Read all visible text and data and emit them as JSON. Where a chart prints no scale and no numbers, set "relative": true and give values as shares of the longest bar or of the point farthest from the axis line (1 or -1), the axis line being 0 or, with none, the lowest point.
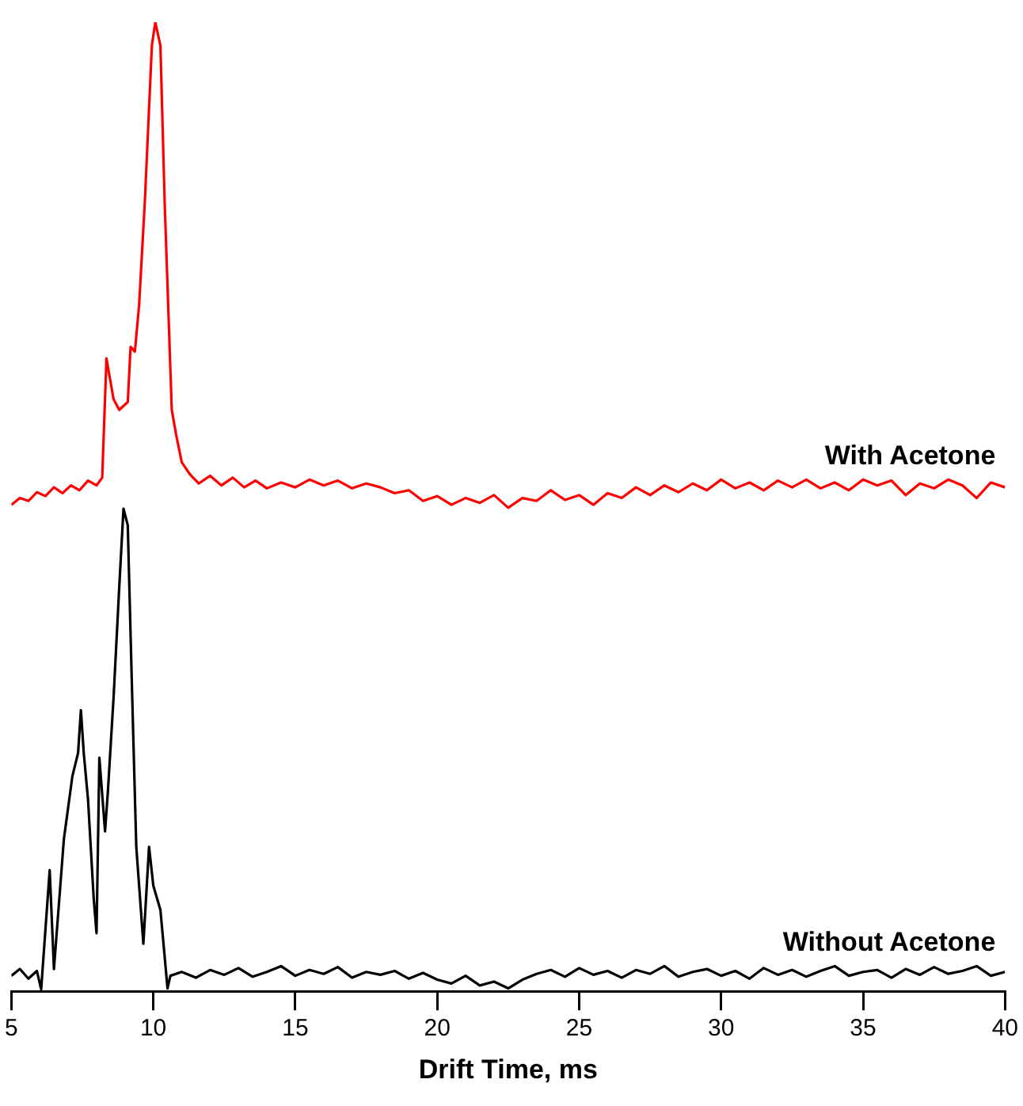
{
  "chart_data": {
    "type": "line",
    "xlabel": "Drift Time, ms",
    "relative": true,
    "legend": false,
    "grid": false,
    "marker": "none",
    "line_style": "solid",
    "xlim": [
      5,
      40
    ],
    "xticks": [
      5,
      10,
      15,
      20,
      25,
      30,
      35,
      40
    ],
    "series": [
      {
        "name": "With Acetone",
        "color": "#ff0000",
        "x": [
          5,
          5.3,
          5.6,
          5.9,
          6.2,
          6.5,
          6.8,
          7.1,
          7.4,
          7.7,
          8,
          8.2,
          8.35,
          8.6,
          8.8,
          9.1,
          9.2,
          9.35,
          9.5,
          9.7,
          9.95,
          10.07,
          10.25,
          10.4,
          10.65,
          10.8,
          11,
          11.3,
          11.6,
          12,
          12.4,
          12.8,
          13.2,
          13.6,
          14,
          14.5,
          15,
          15.5,
          16,
          16.5,
          17,
          17.5,
          18,
          18.5,
          19,
          19.5,
          20,
          20.5,
          21,
          21.5,
          22,
          22.5,
          23,
          23.5,
          24,
          24.5,
          25,
          25.5,
          26,
          26.5,
          27,
          27.5,
          28,
          28.5,
          29,
          29.5,
          30,
          30.5,
          31,
          31.5,
          32,
          32.5,
          33,
          33.5,
          34,
          34.5,
          35,
          35.5,
          36,
          36.5,
          37,
          37.5,
          38,
          38.5,
          39,
          39.5,
          40
        ],
        "values": [
          0.502,
          0.509,
          0.506,
          0.515,
          0.511,
          0.52,
          0.514,
          0.522,
          0.517,
          0.527,
          0.522,
          0.53,
          0.653,
          0.611,
          0.6,
          0.608,
          0.665,
          0.66,
          0.708,
          0.814,
          0.976,
          1,
          0.976,
          0.814,
          0.6,
          0.575,
          0.546,
          0.533,
          0.524,
          0.532,
          0.522,
          0.53,
          0.52,
          0.527,
          0.519,
          0.525,
          0.52,
          0.528,
          0.522,
          0.527,
          0.519,
          0.524,
          0.52,
          0.514,
          0.517,
          0.506,
          0.511,
          0.502,
          0.509,
          0.504,
          0.512,
          0.499,
          0.509,
          0.506,
          0.517,
          0.507,
          0.512,
          0.502,
          0.514,
          0.509,
          0.52,
          0.512,
          0.522,
          0.515,
          0.524,
          0.517,
          0.528,
          0.519,
          0.525,
          0.517,
          0.527,
          0.52,
          0.528,
          0.519,
          0.525,
          0.517,
          0.528,
          0.522,
          0.527,
          0.512,
          0.524,
          0.519,
          0.528,
          0.522,
          0.509,
          0.525,
          0.52
        ]
      },
      {
        "name": "Without Acetone",
        "color": "#000000",
        "x": [
          5,
          5.3,
          5.6,
          5.9,
          6.05,
          6.35,
          6.5,
          6.85,
          7.15,
          7.35,
          7.45,
          7.55,
          7.7,
          7.9,
          8,
          8.1,
          8.3,
          8.4,
          8.6,
          8.8,
          8.95,
          9.1,
          9.25,
          9.4,
          9.65,
          9.85,
          10,
          10.25,
          10.35,
          10.5,
          10.6,
          11,
          11.5,
          12,
          12.5,
          13,
          13.5,
          14,
          14.5,
          15,
          15.5,
          16,
          16.5,
          17,
          17.5,
          18,
          18.5,
          19,
          19.5,
          20,
          20.5,
          21,
          21.5,
          22,
          22.5,
          23,
          23.5,
          24,
          24.5,
          25,
          25.5,
          26,
          26.5,
          27,
          27.5,
          28,
          28.5,
          29,
          29.5,
          30,
          30.5,
          31,
          31.5,
          32,
          32.5,
          33,
          33.5,
          34,
          34.5,
          35,
          35.5,
          36,
          36.5,
          37,
          37.5,
          38,
          38.5,
          39,
          39.5,
          40
        ],
        "values": [
          0.016,
          0.023,
          0.013,
          0.021,
          0.002,
          0.125,
          0.023,
          0.157,
          0.222,
          0.246,
          0.29,
          0.246,
          0.198,
          0.096,
          0.06,
          0.241,
          0.165,
          0.206,
          0.303,
          0.417,
          0.498,
          0.481,
          0.311,
          0.149,
          0.049,
          0.149,
          0.109,
          0.084,
          0.052,
          0.003,
          0.016,
          0.02,
          0.014,
          0.022,
          0.017,
          0.024,
          0.015,
          0.02,
          0.026,
          0.016,
          0.022,
          0.018,
          0.025,
          0.014,
          0.02,
          0.017,
          0.021,
          0.013,
          0.019,
          0.012,
          0.008,
          0.016,
          0.006,
          0.01,
          0.003,
          0.012,
          0.018,
          0.022,
          0.015,
          0.024,
          0.017,
          0.021,
          0.014,
          0.022,
          0.018,
          0.026,
          0.015,
          0.02,
          0.023,
          0.016,
          0.021,
          0.013,
          0.024,
          0.017,
          0.022,
          0.015,
          0.021,
          0.026,
          0.016,
          0.02,
          0.022,
          0.014,
          0.023,
          0.017,
          0.025,
          0.018,
          0.021,
          0.026,
          0.016,
          0.02
        ]
      }
    ]
  }
}
